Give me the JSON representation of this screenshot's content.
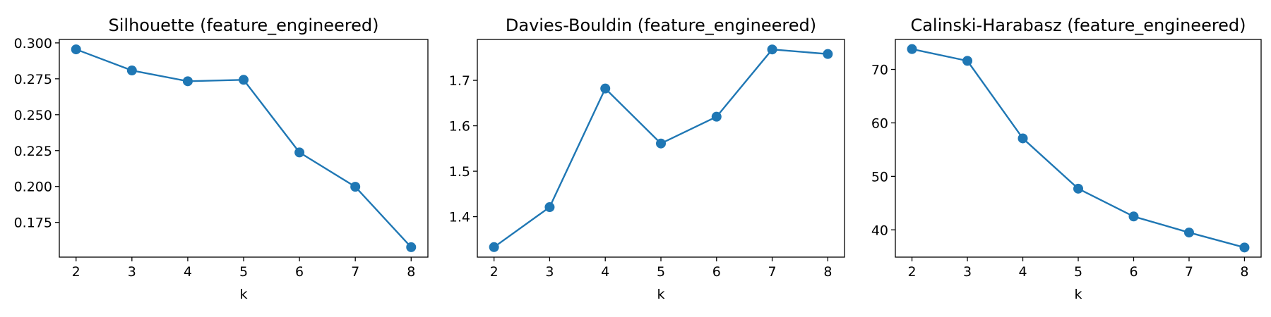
{
  "figure": {
    "background": "#ffffff"
  },
  "chart_data": [
    {
      "type": "line",
      "title": "Silhouette (feature_engineered)",
      "xlabel": "k",
      "ylabel": "",
      "x": [
        2,
        3,
        4,
        5,
        6,
        7,
        8
      ],
      "series": [
        {
          "values": [
            0.2955,
            0.2808,
            0.2733,
            0.2743,
            0.2237,
            0.1998,
            0.1577
          ],
          "color": "#1f77b4",
          "marker": "circle"
        }
      ],
      "xlim": [
        1.7,
        8.3
      ],
      "ylim": [
        0.1508,
        0.3024
      ],
      "xticks": [
        2,
        3,
        4,
        5,
        6,
        7,
        8
      ],
      "yticks": [
        0.175,
        0.2,
        0.225,
        0.25,
        0.275,
        0.3
      ],
      "ytick_labels": [
        "0.175",
        "0.200",
        "0.225",
        "0.250",
        "0.275",
        "0.300"
      ],
      "grid": false,
      "legend": "none"
    },
    {
      "type": "line",
      "title": "Davies-Bouldin (feature_engineered)",
      "xlabel": "k",
      "ylabel": "",
      "x": [
        2,
        3,
        4,
        5,
        6,
        7,
        8
      ],
      "series": [
        {
          "values": [
            1.333,
            1.421,
            1.682,
            1.561,
            1.62,
            1.768,
            1.758
          ],
          "color": "#1f77b4",
          "marker": "circle"
        }
      ],
      "xlim": [
        1.7,
        8.3
      ],
      "ylim": [
        1.311,
        1.79
      ],
      "xticks": [
        2,
        3,
        4,
        5,
        6,
        7,
        8
      ],
      "yticks": [
        1.4,
        1.5,
        1.6,
        1.7
      ],
      "ytick_labels": [
        "1.4",
        "1.5",
        "1.6",
        "1.7"
      ],
      "grid": false,
      "legend": "none"
    },
    {
      "type": "line",
      "title": "Calinski-Harabasz (feature_engineered)",
      "xlabel": "k",
      "ylabel": "",
      "x": [
        2,
        3,
        4,
        5,
        6,
        7,
        8
      ],
      "series": [
        {
          "values": [
            73.8,
            71.6,
            57.1,
            47.7,
            42.5,
            39.5,
            36.7
          ],
          "color": "#1f77b4",
          "marker": "circle"
        }
      ],
      "xlim": [
        1.7,
        8.3
      ],
      "ylim": [
        34.9,
        75.6
      ],
      "xticks": [
        2,
        3,
        4,
        5,
        6,
        7,
        8
      ],
      "yticks": [
        40,
        50,
        60,
        70
      ],
      "ytick_labels": [
        "40",
        "50",
        "60",
        "70"
      ],
      "grid": false,
      "legend": "none"
    }
  ]
}
